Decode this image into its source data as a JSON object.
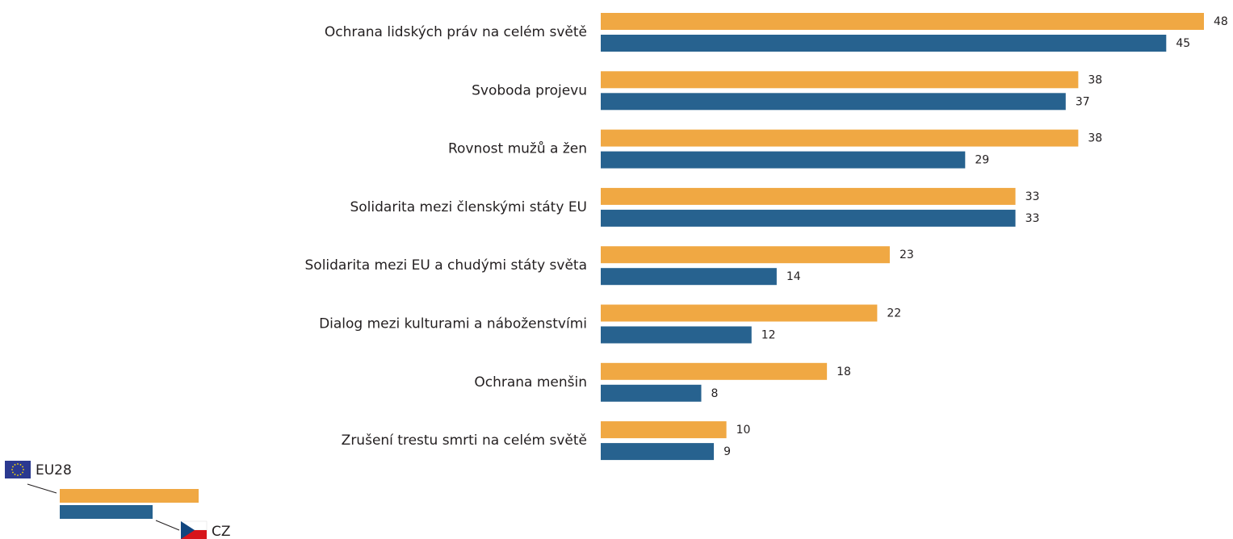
{
  "chart_data": {
    "type": "hbar",
    "categories": [
      "Ochrana lidských práv na celém světě",
      "Svoboda projevu",
      "Rovnost mužů a žen",
      "Solidarita mezi členskými státy EU",
      "Solidarita mezi EU a chudými státy světa",
      "Dialog mezi kulturami a náboženstvími",
      "Ochrana menšin",
      "Zrušení trestu smrti na celém světě"
    ],
    "series": [
      {
        "name": "EU28",
        "color": "#f0a843",
        "values": [
          48,
          38,
          38,
          33,
          23,
          22,
          18,
          10
        ]
      },
      {
        "name": "CZ",
        "color": "#27628f",
        "values": [
          45,
          37,
          29,
          33,
          14,
          12,
          8,
          9
        ]
      }
    ]
  }
}
